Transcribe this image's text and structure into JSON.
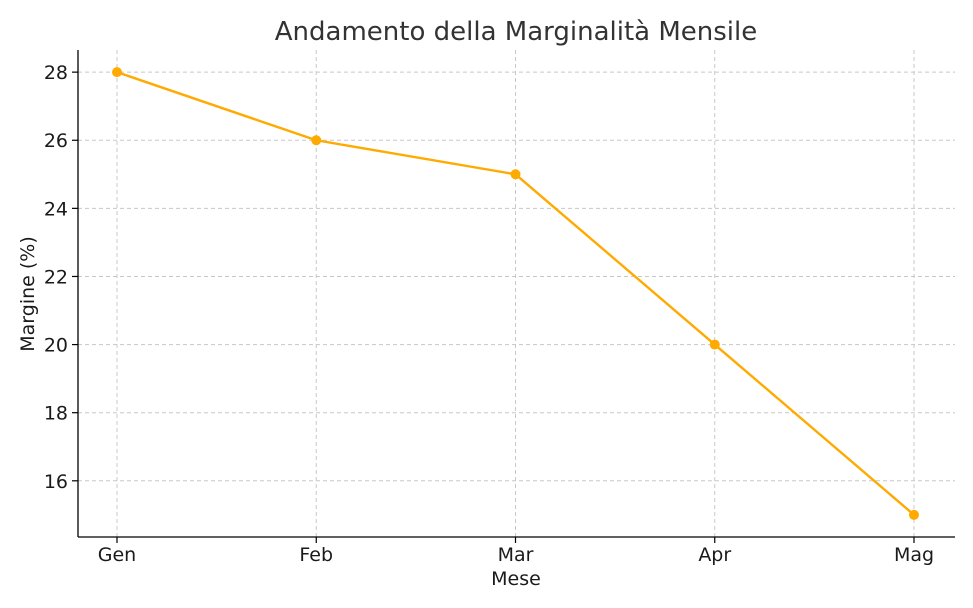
{
  "chart_data": {
    "type": "line",
    "title": "Andamento della Marginalità Mensile",
    "xlabel": "Mese",
    "ylabel": "Margine (%)",
    "categories": [
      "Gen",
      "Feb",
      "Mar",
      "Apr",
      "Mag"
    ],
    "series": [
      {
        "values": [
          28,
          26,
          25,
          20,
          15
        ],
        "color": "#FFAA00"
      }
    ],
    "yticks": [
      16,
      18,
      20,
      22,
      24,
      26,
      28
    ],
    "ylim": [
      14.35,
      28.65
    ],
    "grid": true,
    "grid_style": "dashed",
    "grid_color": "#c8c8c8",
    "marker": "circle"
  }
}
